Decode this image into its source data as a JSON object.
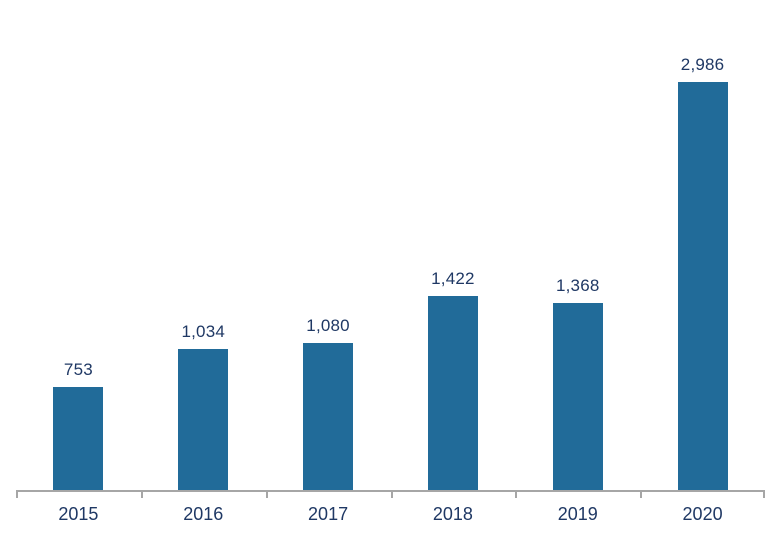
{
  "chart_data": {
    "type": "bar",
    "title": "",
    "xlabel": "",
    "ylabel": "",
    "categories": [
      "2015",
      "2016",
      "2017",
      "2018",
      "2019",
      "2020"
    ],
    "values": [
      753,
      1034,
      1080,
      1422,
      1368,
      2986
    ],
    "value_labels": [
      "753",
      "1,034",
      "1,080",
      "1,422",
      "1,368",
      "2,986"
    ],
    "ylim": [
      0,
      3500
    ],
    "grid": "off",
    "legend": "none",
    "data_labels_position": "above-bar",
    "colors": {
      "bar": "#216b99",
      "label_text": "#1f3864",
      "axis_line": "#a6a6a6"
    }
  }
}
